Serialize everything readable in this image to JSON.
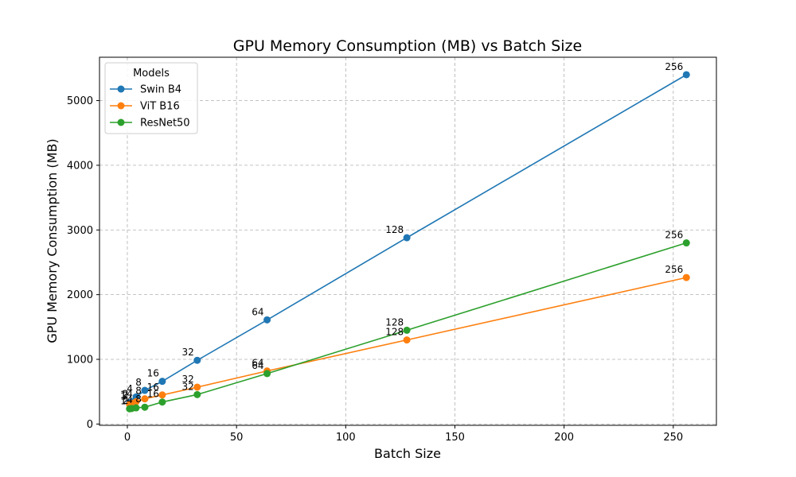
{
  "chart_data": {
    "type": "line",
    "title": "GPU Memory Consumption (MB) vs Batch Size",
    "xlabel": "Batch Size",
    "ylabel": "GPU Memory Consumption (MB)",
    "xlim": [
      -12.75,
      269.75
    ],
    "ylim": [
      -20,
      5670
    ],
    "xticks": [
      0,
      50,
      100,
      150,
      200,
      250
    ],
    "yticks": [
      0,
      1000,
      2000,
      3000,
      4000,
      5000
    ],
    "grid": true,
    "legend": {
      "title": "Models",
      "placement": "top-left"
    },
    "x": [
      1,
      2,
      4,
      8,
      16,
      32,
      64,
      128,
      256
    ],
    "point_labels": [
      "1",
      "2",
      "4",
      "8",
      "16",
      "32",
      "64",
      "128",
      "256"
    ],
    "series": [
      {
        "name": "Swin B4",
        "color": "#1f77b4",
        "values": [
          330,
          345,
          420,
          520,
          660,
          985,
          1610,
          2880,
          5400
        ]
      },
      {
        "name": "ViT B16",
        "color": "#ff7f0e",
        "values": [
          305,
          320,
          345,
          390,
          450,
          570,
          820,
          1300,
          2265
        ]
      },
      {
        "name": "ResNet50",
        "color": "#2ca02c",
        "values": [
          235,
          240,
          250,
          260,
          340,
          455,
          780,
          1450,
          2800
        ]
      }
    ]
  }
}
